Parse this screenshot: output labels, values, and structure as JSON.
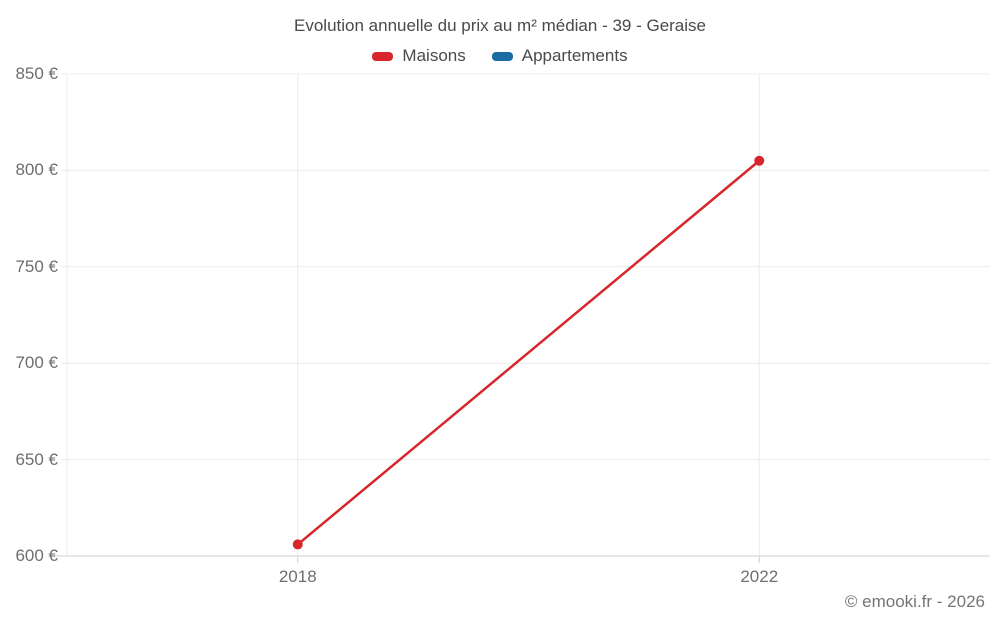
{
  "page": {
    "credit": "© emooki.fr - 2026"
  },
  "chart_data": {
    "type": "line",
    "title": "Evolution annuelle du prix au m² médian - 39 - Geraise",
    "x": [
      2018,
      2022
    ],
    "x_tick_labels": [
      "2018",
      "2022"
    ],
    "series": [
      {
        "name": "Maisons",
        "color": "#d7272d",
        "values": [
          606,
          805
        ]
      },
      {
        "name": "Appartements",
        "color": "#1a6da3",
        "values": []
      }
    ],
    "xlim": [
      2016,
      2024
    ],
    "ylim": [
      600,
      850
    ],
    "y_ticks": [
      600,
      650,
      700,
      750,
      800,
      850
    ],
    "y_tick_suffix": " €",
    "xlabel": "",
    "ylabel": "",
    "grid": true,
    "legend_position": "top",
    "colors": {
      "grid_line": "#ececec",
      "axis_line": "#cfcfcf",
      "tick_text": "#6e6e6e",
      "title_text": "#4a4a4a"
    }
  }
}
